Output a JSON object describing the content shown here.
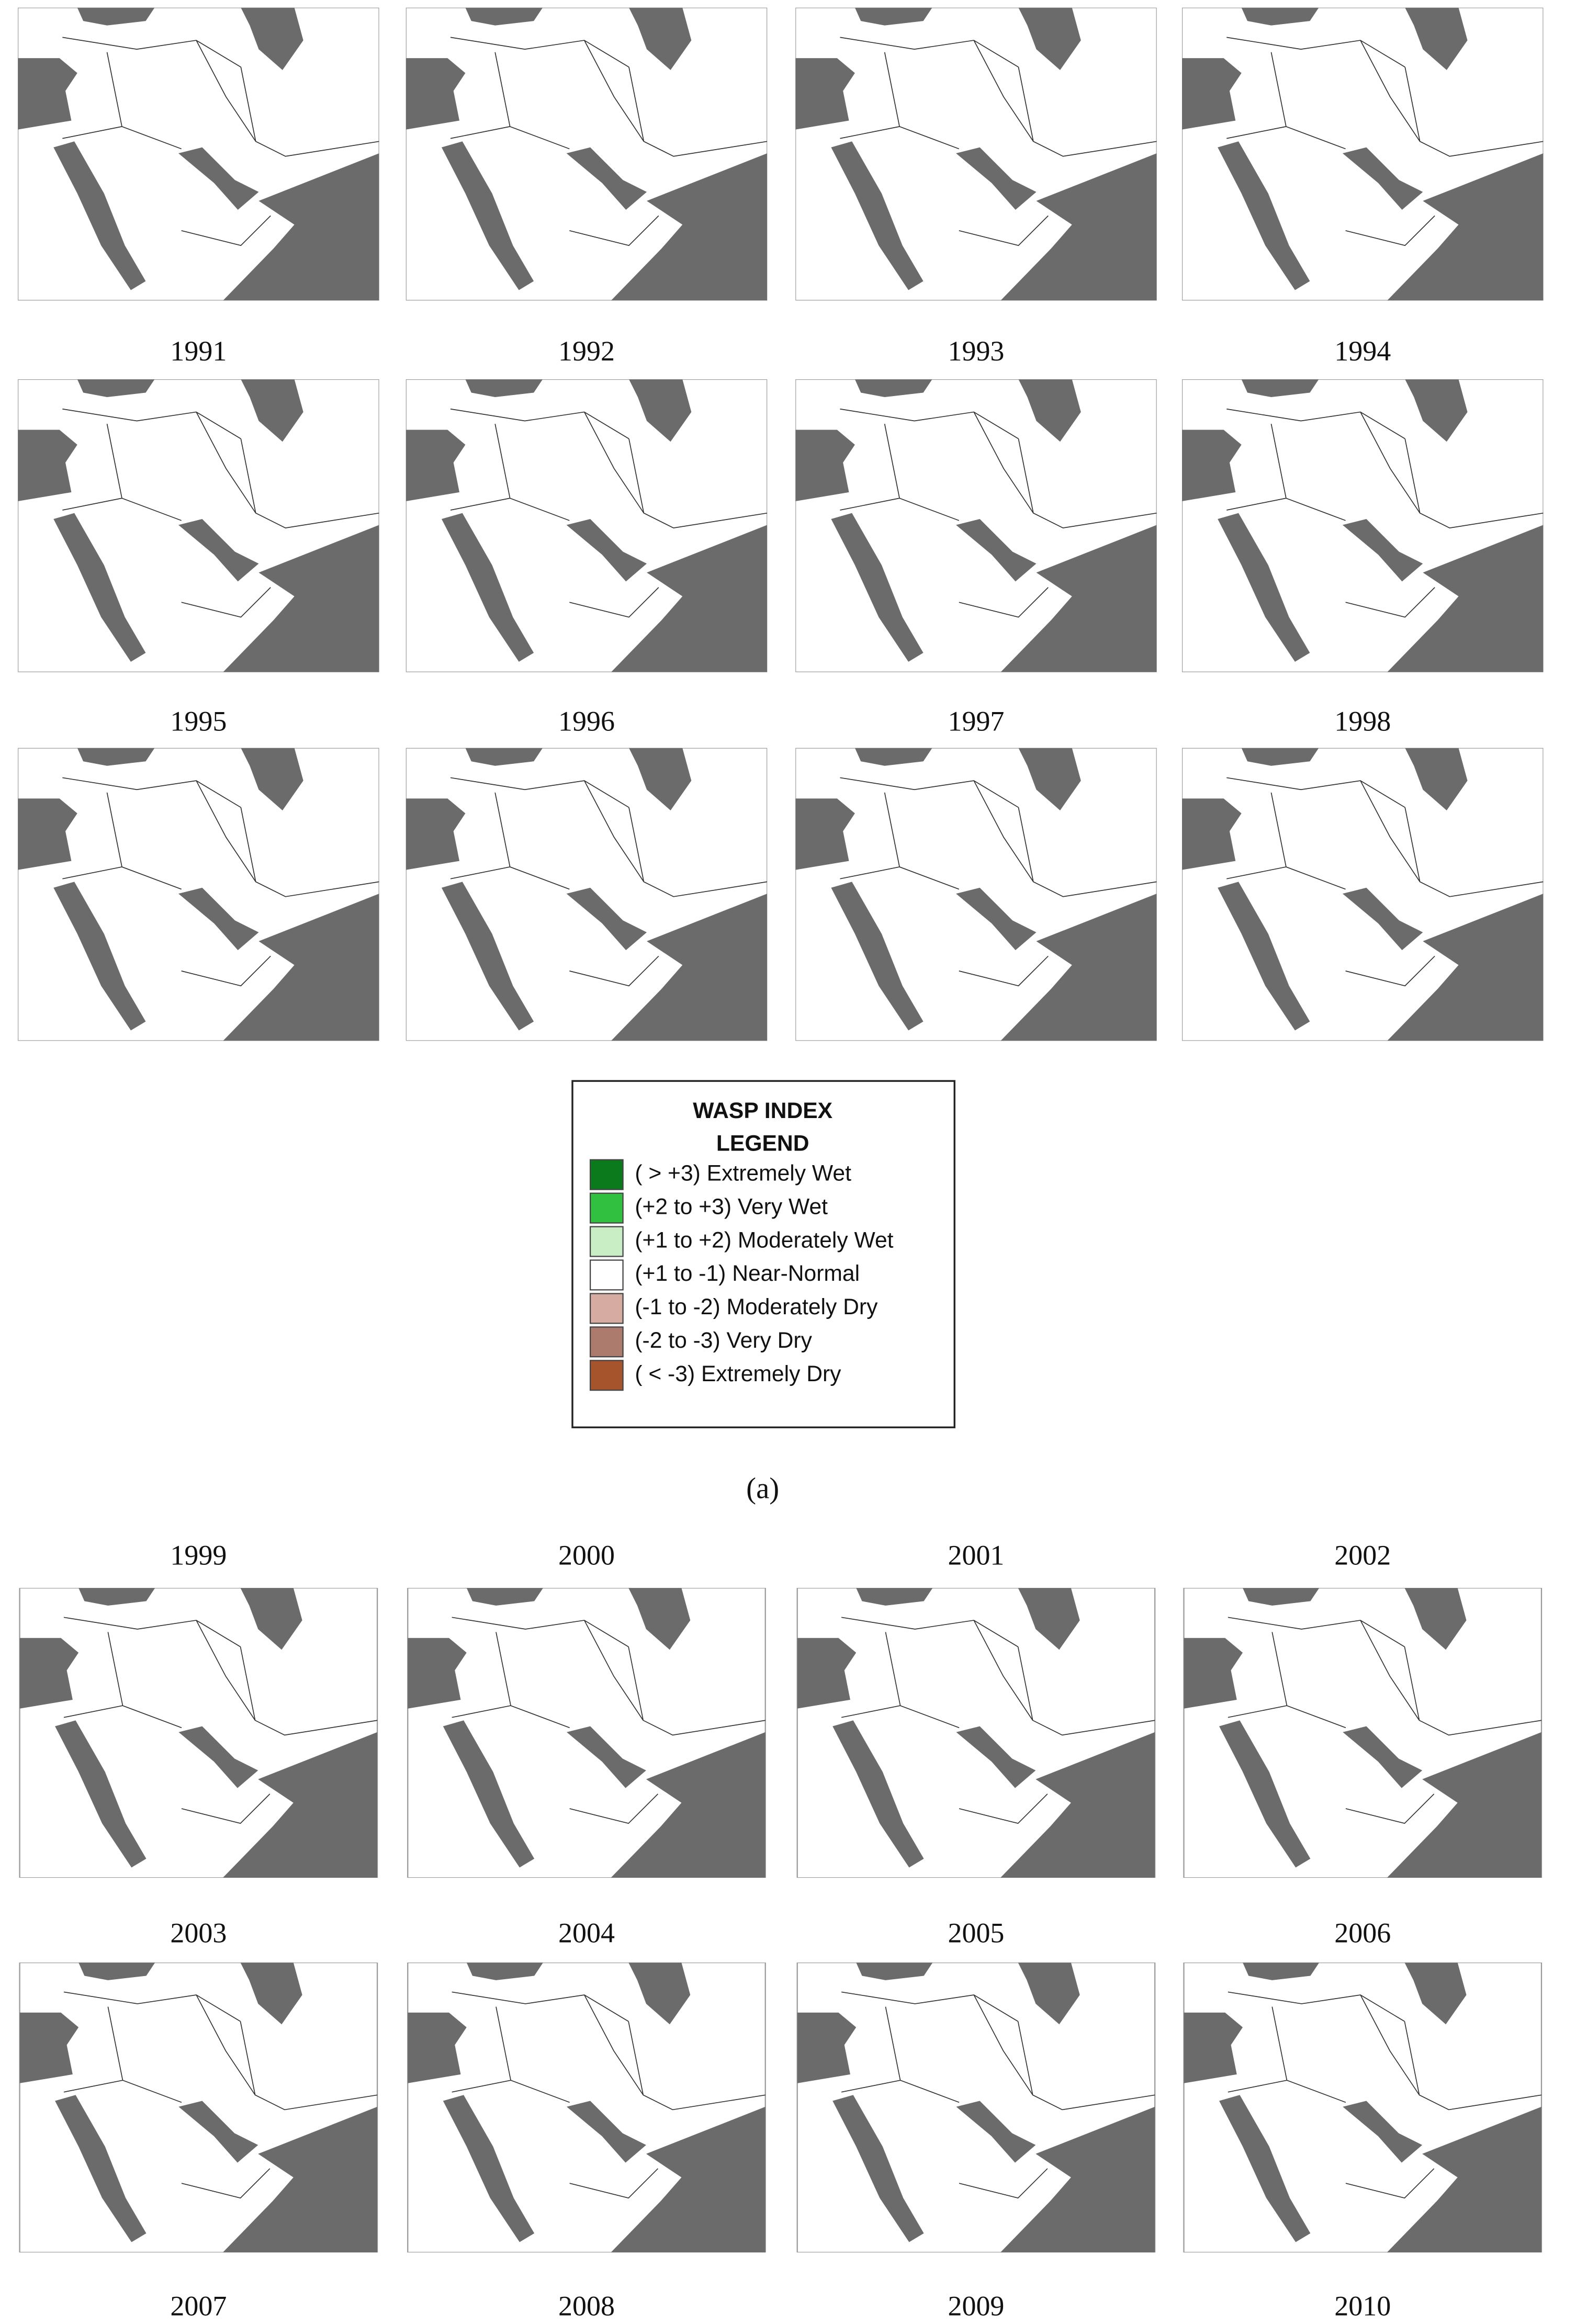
{
  "year_labels": [
    "1991",
    "1992",
    "1993",
    "1994",
    "1995",
    "1996",
    "1997",
    "1998",
    "1999",
    "2000",
    "2001",
    "2002",
    "2003",
    "2004",
    "2005",
    "2006",
    "2007",
    "2008",
    "2009",
    "2010"
  ],
  "legend": {
    "title": [
      "WASP INDEX",
      "LEGEND"
    ],
    "entries": [
      {
        "label": "( > +3) Extremely Wet",
        "color": "#0b7a1c"
      },
      {
        "label": "(+2 to +3) Very Wet",
        "color": "#31c040"
      },
      {
        "label": "(+1 to +2) Moderately Wet",
        "color": "#c9eec6"
      },
      {
        "label": "(+1 to -1) Near-Normal",
        "color": "#ffffff"
      },
      {
        "label": "(-1 to -2) Moderately Dry",
        "color": "#d6aca2"
      },
      {
        "label": "(-2 to -3) Very Dry",
        "color": "#ad7b6e"
      },
      {
        "label": "( < -3) Extremely Dry",
        "color": "#a6542c"
      }
    ]
  },
  "panel_label": "(a)"
}
